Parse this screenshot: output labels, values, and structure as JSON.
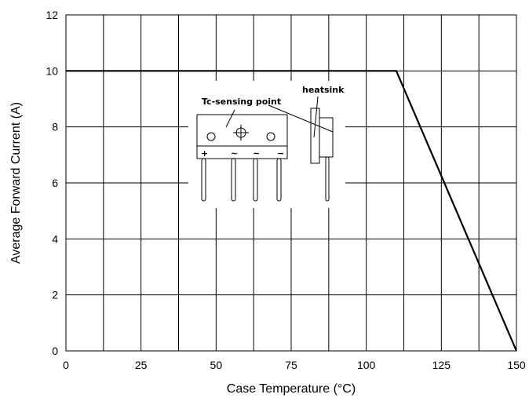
{
  "chart_data": {
    "type": "line",
    "xlabel": "Case Temperature (°C)",
    "ylabel": "Average Forward Current (A)",
    "xlim": [
      0,
      150
    ],
    "ylim": [
      0,
      12
    ],
    "x_ticks": [
      0,
      25,
      50,
      75,
      100,
      125,
      150
    ],
    "y_ticks": [
      0,
      2,
      4,
      6,
      8,
      10,
      12
    ],
    "grid": true,
    "series": [
      {
        "x": [
          0,
          110,
          150
        ],
        "y": [
          10,
          10,
          0
        ],
        "color": "#000000"
      }
    ],
    "annotations": [
      "heatsink",
      "Tc-sensing point"
    ],
    "pin_labels": [
      "+",
      "~",
      "~",
      "−"
    ]
  }
}
